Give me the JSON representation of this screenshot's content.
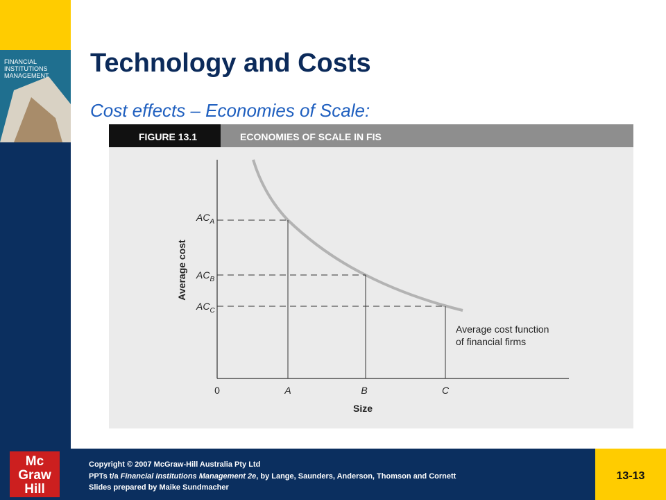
{
  "header": {
    "title": "Technology and Costs",
    "subtitle": "Cost effects – Economies of Scale:"
  },
  "cover": {
    "lines": [
      "FINANCIAL",
      "INSTITUTIONS",
      "MANAGEMENT"
    ]
  },
  "figure": {
    "label": "FIGURE 13.1",
    "title": "ECONOMIES OF SCALE IN FIS",
    "y_axis_label": "Average cost",
    "x_axis_label": "Size",
    "y_labels": [
      {
        "main": "AC",
        "sub": "A"
      },
      {
        "main": "AC",
        "sub": "B"
      },
      {
        "main": "AC",
        "sub": "C"
      }
    ],
    "x_labels": [
      "0",
      "A",
      "B",
      "C"
    ],
    "annotation": [
      "Average cost function",
      "of financial firms"
    ]
  },
  "footer": {
    "logo": [
      "Mc",
      "Graw",
      "Hill"
    ],
    "copyright": "Copyright © 2007 McGraw-Hill Australia Pty Ltd",
    "credit_prefix": "PPTs t/a ",
    "credit_book": "Financial Institutions Management 2e",
    "credit_suffix": ", by Lange, Saunders, Anderson, Thomson and Cornett",
    "prepared": "Slides prepared by Maike Sundmacher",
    "slide_number": "13-13"
  }
}
